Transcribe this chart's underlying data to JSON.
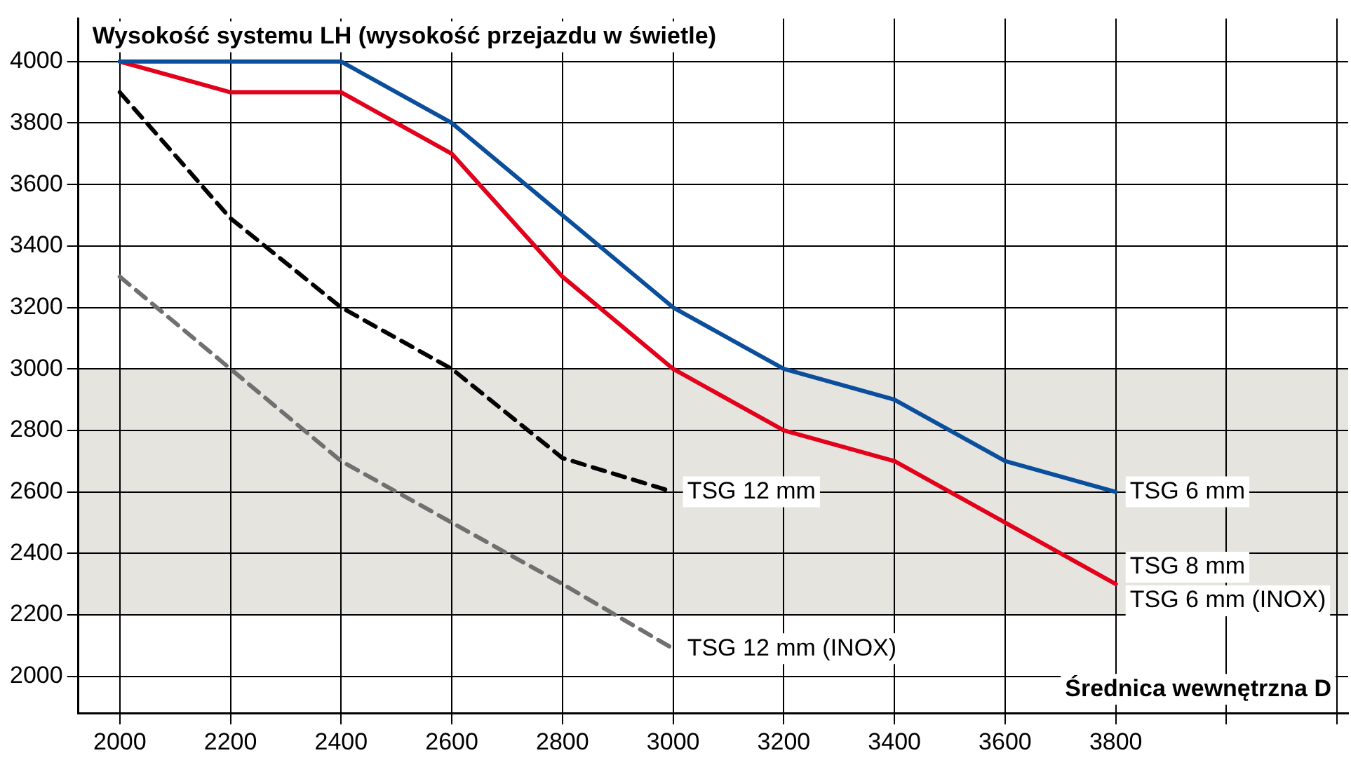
{
  "chart_data": {
    "type": "line",
    "ylabel": "Wysokość systemu LH (wysokość przejazdu w świetle)",
    "xlabel": "Średnica wewnętrzna D",
    "x": [
      2000,
      2200,
      2400,
      2600,
      2800,
      3000,
      3200,
      3400,
      3600,
      3800
    ],
    "series": [
      {
        "name": "TSG 6 mm",
        "color": "#0b4f9c",
        "values": [
          4000,
          4000,
          4000,
          3800,
          3500,
          3200,
          3000,
          2900,
          2700,
          2600
        ]
      },
      {
        "name": "TSG 8 mm",
        "color": "#e3001b",
        "values": [
          4000,
          3900,
          3900,
          3700,
          3300,
          3000,
          2800,
          2700,
          2500,
          2300
        ]
      },
      {
        "name": "TSG 12 mm",
        "color": "#000000",
        "line_style": "dashed",
        "x": [
          2000,
          2200,
          2400,
          2600,
          2800,
          3000
        ],
        "values": [
          3900,
          3490,
          3200,
          3000,
          2710,
          2600
        ]
      },
      {
        "name": "TSG 12 mm (INOX)",
        "color": "#707070",
        "line_style": "dashed",
        "x": [
          2000,
          2200,
          2400,
          2600,
          2800,
          3000
        ],
        "values": [
          3300,
          3000,
          2700,
          2500,
          2300,
          2090
        ]
      }
    ],
    "annotations": [
      {
        "text": "TSG 6 mm (INOX)",
        "x": 3800,
        "y": 2300
      }
    ],
    "bands": [
      {
        "axis": "y",
        "from": 2200,
        "to": 3000,
        "color": "#e6e4df"
      }
    ],
    "xlim": [
      1925,
      4220
    ],
    "xticks": [
      2000,
      2200,
      2400,
      2600,
      2800,
      3000,
      3200,
      3400,
      3600,
      3800,
      {
        "value": 4000,
        "label": null
      },
      {
        "value": 4200,
        "label": null
      }
    ],
    "ylim": [
      1880,
      4140
    ],
    "yticks": [
      2000,
      2200,
      2400,
      2600,
      2800,
      3000,
      3200,
      3400,
      3600,
      3800,
      4000
    ],
    "grid": true,
    "legend": false,
    "marker": "none",
    "line_style": "solid"
  }
}
